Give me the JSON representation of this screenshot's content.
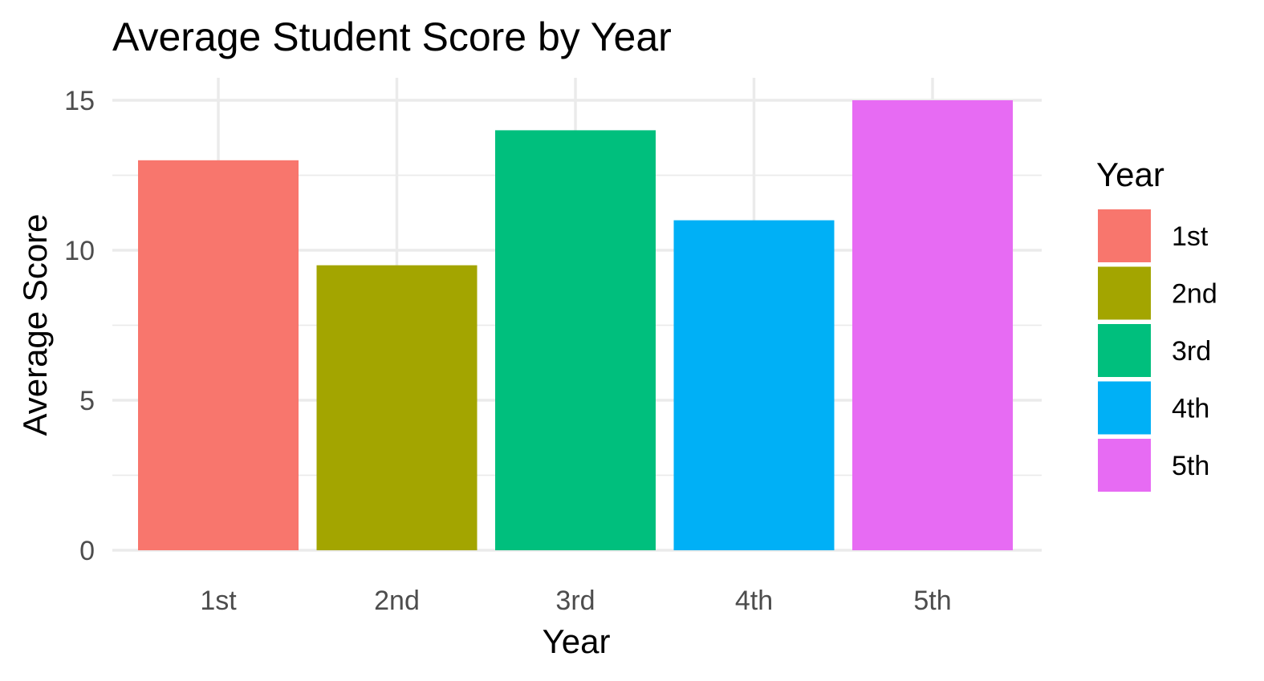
{
  "chart_data": {
    "type": "bar",
    "title": "Average Student Score by Year",
    "xlabel": "Year",
    "ylabel": "Average Score",
    "categories": [
      "1st",
      "2nd",
      "3rd",
      "4th",
      "5th"
    ],
    "values": [
      13,
      9.5,
      14,
      11,
      15
    ],
    "colors": [
      "#F8766D",
      "#A3A500",
      "#00BF7D",
      "#00B0F6",
      "#E76BF3"
    ],
    "ylim": [
      0,
      15
    ],
    "yticks": [
      "0",
      "5",
      "10",
      "15"
    ],
    "grid": true,
    "legend": {
      "title": "Year",
      "position": "right",
      "entries": [
        "1st",
        "2nd",
        "3rd",
        "4th",
        "5th"
      ]
    }
  }
}
